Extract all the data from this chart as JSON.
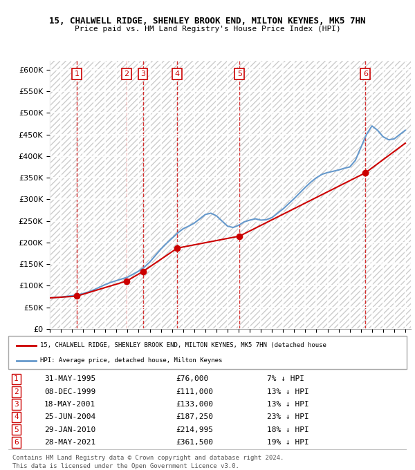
{
  "title1": "15, CHALWELL RIDGE, SHENLEY BROOK END, MILTON KEYNES, MK5 7HN",
  "title2": "Price paid vs. HM Land Registry's House Price Index (HPI)",
  "legend_label_red": "15, CHALWELL RIDGE, SHENLEY BROOK END, MILTON KEYNES, MK5 7HN (detached house",
  "legend_label_blue": "HPI: Average price, detached house, Milton Keynes",
  "footer1": "Contains HM Land Registry data © Crown copyright and database right 2024.",
  "footer2": "This data is licensed under the Open Government Licence v3.0.",
  "transactions": [
    {
      "id": 1,
      "date": "31-MAY-1995",
      "price": 76000,
      "pct": "7%",
      "x": 1995.42
    },
    {
      "id": 2,
      "date": "08-DEC-1999",
      "price": 111000,
      "pct": "13%",
      "x": 1999.92
    },
    {
      "id": 3,
      "date": "18-MAY-2001",
      "price": 133000,
      "pct": "13%",
      "x": 2001.38
    },
    {
      "id": 4,
      "date": "25-JUN-2004",
      "price": 187250,
      "pct": "23%",
      "x": 2004.48
    },
    {
      "id": 5,
      "date": "29-JAN-2010",
      "price": 214995,
      "pct": "18%",
      "x": 2010.08
    },
    {
      "id": 6,
      "date": "28-MAY-2021",
      "price": 361500,
      "pct": "19%",
      "x": 2021.41
    }
  ],
  "hpi_x": [
    1993,
    1993.5,
    1994,
    1994.5,
    1995,
    1995.5,
    1996,
    1996.5,
    1997,
    1997.5,
    1998,
    1998.5,
    1999,
    1999.5,
    2000,
    2000.5,
    2001,
    2001.5,
    2002,
    2002.5,
    2003,
    2003.5,
    2004,
    2004.5,
    2005,
    2005.5,
    2006,
    2006.5,
    2007,
    2007.5,
    2008,
    2008.5,
    2009,
    2009.5,
    2010,
    2010.5,
    2011,
    2011.5,
    2012,
    2012.5,
    2013,
    2013.5,
    2014,
    2014.5,
    2015,
    2015.5,
    2016,
    2016.5,
    2017,
    2017.5,
    2018,
    2018.5,
    2019,
    2019.5,
    2020,
    2020.5,
    2021,
    2021.5,
    2022,
    2022.5,
    2023,
    2023.5,
    2024,
    2024.5,
    2025
  ],
  "hpi_y": [
    72000,
    73000,
    74000,
    75500,
    77000,
    79000,
    82000,
    86000,
    91000,
    97000,
    103000,
    108000,
    112000,
    116000,
    120000,
    127000,
    134000,
    143000,
    155000,
    170000,
    185000,
    198000,
    210000,
    222000,
    232000,
    238000,
    245000,
    255000,
    265000,
    268000,
    262000,
    250000,
    238000,
    235000,
    240000,
    248000,
    252000,
    255000,
    252000,
    253000,
    258000,
    268000,
    278000,
    290000,
    302000,
    315000,
    328000,
    340000,
    350000,
    358000,
    362000,
    365000,
    368000,
    372000,
    375000,
    390000,
    420000,
    450000,
    470000,
    460000,
    445000,
    438000,
    440000,
    450000,
    460000
  ],
  "price_paid_x": [
    1993,
    1995.42,
    1999.92,
    2001.38,
    2004.48,
    2010.08,
    2021.41,
    2025
  ],
  "price_paid_y": [
    72000,
    76000,
    111000,
    133000,
    187250,
    214995,
    361500,
    430000
  ],
  "xlim": [
    1993,
    2025.5
  ],
  "ylim": [
    0,
    620000
  ],
  "yticks": [
    0,
    50000,
    100000,
    150000,
    200000,
    250000,
    300000,
    350000,
    400000,
    450000,
    500000,
    550000,
    600000
  ],
  "xticks": [
    1993,
    1994,
    1995,
    1996,
    1997,
    1998,
    1999,
    2000,
    2001,
    2002,
    2003,
    2004,
    2005,
    2006,
    2007,
    2008,
    2009,
    2010,
    2011,
    2012,
    2013,
    2014,
    2015,
    2016,
    2017,
    2018,
    2019,
    2020,
    2021,
    2022,
    2023,
    2024,
    2025
  ],
  "hatch_color": "#cccccc",
  "bg_color": "#e8f0f8",
  "plot_bg": "#ffffff",
  "red_color": "#cc0000",
  "blue_color": "#6699cc",
  "dashed_color": "#cc0000"
}
